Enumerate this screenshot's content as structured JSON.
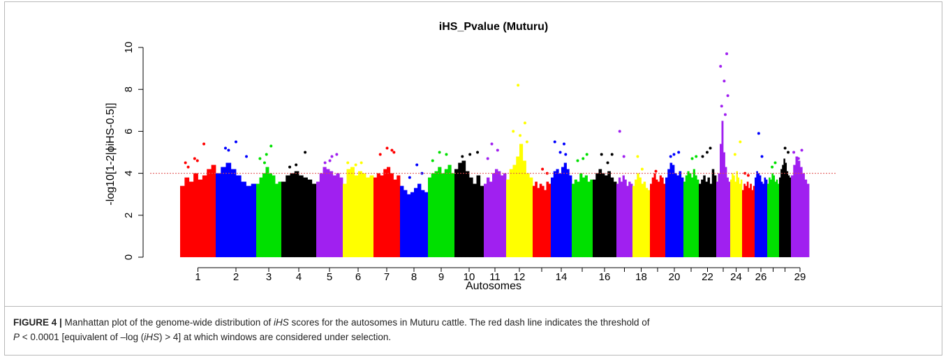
{
  "chart_data": {
    "type": "manhattan",
    "title": "iHS_Pvalue (Muturu)",
    "x_label": "Autosomes",
    "y_label": "-log10[1-2|ϕiHS-0.5|]",
    "ylim": [
      -0.5,
      10.5
    ],
    "yticks": [
      0,
      2,
      4,
      6,
      8,
      10
    ],
    "threshold": 4,
    "threshold_color": "#e05050",
    "colors": [
      "#ff0000",
      "#0000ff",
      "#00e000",
      "#000000",
      "#a020f0",
      "#ffff00"
    ],
    "chromosomes": [
      {
        "label": "1",
        "bulk": [
          3.4,
          3.8,
          3.6,
          4.0,
          3.7,
          3.9,
          4.2,
          4.4
        ],
        "peaks": [
          4.5,
          4.7,
          5.4,
          4.3,
          4.6
        ]
      },
      {
        "label": "2",
        "bulk": [
          4.0,
          4.3,
          4.5,
          4.2,
          3.9,
          3.6,
          3.4,
          3.5
        ],
        "peaks": [
          5.2,
          5.5,
          4.8,
          5.1
        ]
      },
      {
        "label": "3",
        "bulk": [
          3.5,
          3.8,
          4.0,
          4.3,
          4.0,
          3.9,
          3.5,
          3.6
        ],
        "peaks": [
          4.5,
          5.3,
          4.7,
          4.9
        ]
      },
      {
        "label": "4",
        "bulk": [
          3.6,
          3.9,
          4.0,
          4.1,
          3.9,
          3.8,
          3.7,
          3.5
        ],
        "peaks": [
          4.4,
          5.0,
          4.3
        ]
      },
      {
        "label": "5",
        "bulk": [
          3.6,
          4.0,
          4.3,
          4.2,
          4.1,
          3.9,
          4.0,
          3.8
        ],
        "peaks": [
          4.6,
          4.9,
          4.5,
          4.8
        ]
      },
      {
        "label": "6",
        "bulk": [
          3.5,
          4.2,
          4.3,
          3.9,
          4.1,
          4.0,
          3.8,
          3.9
        ],
        "peaks": [
          4.5,
          4.5,
          4.4
        ]
      },
      {
        "label": "7",
        "bulk": [
          3.8,
          4.0,
          3.9,
          4.2,
          4.3,
          4.0,
          3.7,
          3.9
        ],
        "peaks": [
          5.1,
          4.9,
          5.2,
          5.0
        ]
      },
      {
        "label": "8",
        "bulk": [
          3.4,
          3.2,
          3.0,
          3.1,
          3.3,
          3.5,
          3.2,
          3.1
        ],
        "peaks": [
          4.0,
          3.8,
          4.4
        ]
      },
      {
        "label": "9",
        "bulk": [
          3.8,
          4.0,
          4.1,
          4.3,
          4.0,
          4.2,
          4.4,
          4.0
        ],
        "peaks": [
          4.6,
          5.0,
          4.9
        ]
      },
      {
        "label": "10",
        "bulk": [
          4.2,
          4.5,
          4.6,
          4.1,
          3.8,
          3.5,
          3.9,
          3.4
        ],
        "peaks": [
          4.8,
          4.9,
          5.0
        ]
      },
      {
        "label": "11",
        "bulk": [
          3.5,
          3.8,
          3.6,
          4.0,
          4.2,
          4.1,
          3.9,
          4.0
        ],
        "peaks": [
          5.4,
          5.1,
          4.7
        ]
      },
      {
        "label": "12",
        "bulk": [
          3.7,
          4.2,
          4.4,
          4.8,
          5.4,
          4.6,
          4.0,
          3.8
        ],
        "peaks": [
          8.2,
          6.4,
          6.0,
          5.8,
          5.5
        ]
      },
      {
        "label": null,
        "bulk": [
          3.4,
          3.6,
          3.3,
          3.5,
          3.4,
          3.2,
          3.6,
          3.5
        ],
        "peaks": [
          4.2,
          4.0
        ]
      },
      {
        "label": "14",
        "bulk": [
          3.8,
          4.1,
          4.2,
          4.0,
          4.3,
          4.5,
          4.2,
          3.9
        ],
        "peaks": [
          5.4,
          5.5,
          5.0,
          4.9
        ]
      },
      {
        "label": null,
        "bulk": [
          3.5,
          3.7,
          3.6,
          4.0,
          3.8,
          3.9,
          3.6,
          3.7
        ],
        "peaks": [
          4.9,
          4.6,
          4.7
        ]
      },
      {
        "label": "16",
        "bulk": [
          3.7,
          4.0,
          4.2,
          4.0,
          3.9,
          4.1,
          3.8,
          3.6
        ],
        "peaks": [
          4.9,
          4.9,
          4.5
        ]
      },
      {
        "label": null,
        "bulk": [
          3.5,
          3.8,
          3.6,
          3.9,
          3.7,
          3.4,
          3.6,
          3.5
        ],
        "peaks": [
          6.0,
          4.8
        ]
      },
      {
        "label": "18",
        "bulk": [
          3.4,
          3.7,
          4.0,
          3.8,
          3.5,
          3.6,
          3.3,
          3.2
        ],
        "peaks": [
          4.8,
          4.2
        ]
      },
      {
        "label": null,
        "bulk": [
          3.5,
          3.8,
          4.0,
          3.7,
          3.6,
          3.9,
          3.8,
          3.5
        ],
        "peaks": [
          4.1
        ]
      },
      {
        "label": "20",
        "bulk": [
          3.8,
          4.2,
          4.5,
          4.4,
          4.0,
          3.9,
          4.1,
          3.8
        ],
        "peaks": [
          4.9,
          5.0,
          4.8
        ]
      },
      {
        "label": null,
        "bulk": [
          3.6,
          3.9,
          4.1,
          4.0,
          3.8,
          4.2,
          3.9,
          3.7
        ],
        "peaks": [
          4.7,
          4.8
        ]
      },
      {
        "label": "22",
        "bulk": [
          3.5,
          3.7,
          3.9,
          3.6,
          3.8,
          3.5,
          4.2,
          3.9
        ],
        "peaks": [
          5.2,
          4.8,
          5.0
        ]
      },
      {
        "label": null,
        "bulk": [
          3.6,
          4.0,
          5.4,
          6.5,
          5.0,
          4.3,
          3.8,
          3.6
        ],
        "peaks": [
          9.7,
          9.1,
          8.4,
          7.7,
          7.2,
          6.8
        ]
      },
      {
        "label": "24",
        "bulk": [
          3.7,
          4.0,
          3.9,
          3.6,
          4.1,
          3.8,
          3.5,
          3.7
        ],
        "peaks": [
          5.5,
          4.9
        ]
      },
      {
        "label": null,
        "bulk": [
          3.2,
          3.5,
          3.4,
          3.6,
          3.3,
          3.5,
          3.2,
          3.4
        ],
        "peaks": [
          4.0,
          3.9
        ]
      },
      {
        "label": "26",
        "bulk": [
          3.8,
          4.1,
          4.0,
          3.9,
          3.6,
          3.5,
          3.8,
          3.7
        ],
        "peaks": [
          5.9,
          4.8
        ]
      },
      {
        "label": null,
        "bulk": [
          3.5,
          3.8,
          3.7,
          4.0,
          3.9,
          3.6,
          3.7,
          3.5
        ],
        "peaks": [
          4.3,
          4.5
        ]
      },
      {
        "label": null,
        "bulk": [
          3.8,
          4.2,
          4.4,
          4.7,
          4.5,
          4.1,
          3.9,
          3.8
        ],
        "peaks": [
          5.2,
          5.0
        ]
      },
      {
        "label": "29",
        "bulk": [
          3.9,
          4.4,
          4.8,
          4.6,
          4.3,
          4.0,
          3.7,
          3.5
        ],
        "peaks": [
          5.1,
          5.0,
          4.7
        ]
      }
    ]
  },
  "caption": {
    "label": "FIGURE 4 |",
    "line1": [
      {
        "text": " Manhattan plot of the genome-wide distribution of ",
        "italic": false
      },
      {
        "text": "iHS",
        "italic": true
      },
      {
        "text": " scores for the autosomes in Muturu cattle. The red dash line indicates the threshold of",
        "italic": false
      }
    ],
    "line2": [
      {
        "text": "P",
        "italic": true
      },
      {
        "text": " < 0.0001 [equivalent of –log (",
        "italic": false
      },
      {
        "text": "iHS",
        "italic": true
      },
      {
        "text": ") > 4] at which windows are considered under selection.",
        "italic": false
      }
    ]
  }
}
